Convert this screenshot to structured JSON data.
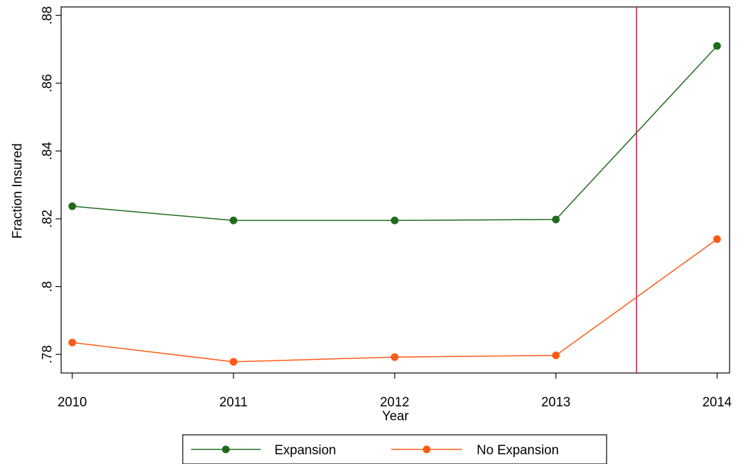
{
  "chart_data": {
    "type": "line",
    "xlabel": "Year",
    "ylabel": "Fraction Insured",
    "x": [
      2010,
      2011,
      2012,
      2013,
      2014
    ],
    "x_tick_labels": [
      "2010",
      "2011",
      "2012",
      "2013",
      "2014"
    ],
    "y_tick_values": [
      0.78,
      0.8,
      0.82,
      0.84,
      0.86,
      0.88
    ],
    "y_tick_labels": [
      ".78",
      ".8",
      ".82",
      ".84",
      ".86",
      ".88"
    ],
    "xlim": [
      2010,
      2014
    ],
    "ylim": [
      0.7745,
      0.8825
    ],
    "grid": false,
    "legend_placement": "bottom-center",
    "vertical_reference_line": {
      "x": 2013.5,
      "color": "#c8184a"
    },
    "series": [
      {
        "name": "Expansion",
        "color": "#1e6b1e",
        "values": [
          0.8237,
          0.8195,
          0.8195,
          0.8198,
          0.871
        ]
      },
      {
        "name": "No Expansion",
        "color": "#ff5a14",
        "values": [
          0.7835,
          0.7778,
          0.7792,
          0.7797,
          0.814
        ]
      }
    ]
  }
}
